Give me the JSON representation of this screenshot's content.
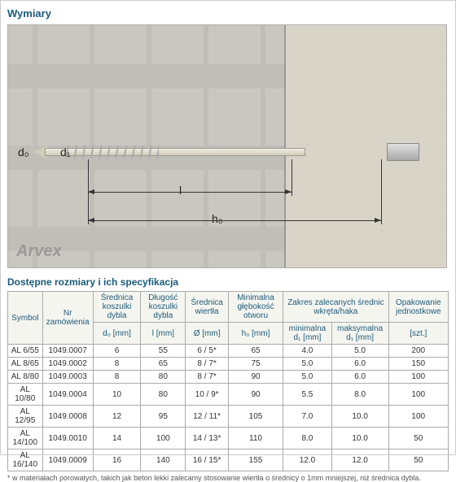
{
  "title": "Wymiary",
  "brand": "Arvex",
  "subtitle": "Dostępne rozmiary i ich specyfikacja",
  "dims": {
    "d0": "d₀",
    "d1": "d₁",
    "l": "l",
    "h0": "h₀"
  },
  "headers": {
    "symbol": "Symbol",
    "nr": "Nr zamówienia",
    "d0a": "Średnica koszulki dybla",
    "d0b": "d₀ [mm]",
    "la": "Długość koszulki dybla",
    "lb": "l [mm]",
    "diaa": "Średnica wiertła",
    "diab": "Ø [mm]",
    "h0a": "Minimalna głębokość otworu",
    "h0b": "h₀ [mm]",
    "range": "Zakres zalecanych średnic wkręta/haka",
    "d1min": "minimalna d₁ [mm]",
    "d1max": "maksymalna d₁ [mm]",
    "packa": "Opakowanie jednostkowe",
    "packb": "[szt.]"
  },
  "rows": [
    {
      "sym": "AL 6/55",
      "nr": "1049.0007",
      "d0": "6",
      "l": "55",
      "dia": "6 / 5*",
      "h0": "65",
      "min": "4.0",
      "max": "5.0",
      "pack": "200"
    },
    {
      "sym": "AL 8/65",
      "nr": "1049.0002",
      "d0": "8",
      "l": "65",
      "dia": "8 / 7*",
      "h0": "75",
      "min": "5.0",
      "max": "6.0",
      "pack": "150"
    },
    {
      "sym": "AL 8/80",
      "nr": "1049.0003",
      "d0": "8",
      "l": "80",
      "dia": "8 / 7*",
      "h0": "90",
      "min": "5.0",
      "max": "6.0",
      "pack": "100"
    },
    {
      "sym": "AL 10/80",
      "nr": "1049.0004",
      "d0": "10",
      "l": "80",
      "dia": "10 / 9*",
      "h0": "90",
      "min": "5.5",
      "max": "8.0",
      "pack": "100"
    },
    {
      "sym": "AL 12/95",
      "nr": "1049.0008",
      "d0": "12",
      "l": "95",
      "dia": "12 / 11*",
      "h0": "105",
      "min": "7.0",
      "max": "10.0",
      "pack": "100"
    },
    {
      "sym": "AL 14/100",
      "nr": "1049.0010",
      "d0": "14",
      "l": "100",
      "dia": "14 / 13*",
      "h0": "110",
      "min": "8.0",
      "max": "10.0",
      "pack": "50"
    },
    {
      "sym": "AL 16/140",
      "nr": "1049.0009",
      "d0": "16",
      "l": "140",
      "dia": "16 / 15*",
      "h0": "155",
      "min": "12.0",
      "max": "12.0",
      "pack": "50"
    }
  ],
  "footnote": "* w materiałach porowatych, takich jak beton lekki zalecamy stosowanie wiertła o średnicy o 1mm mniejszej, niż średnica dybla."
}
